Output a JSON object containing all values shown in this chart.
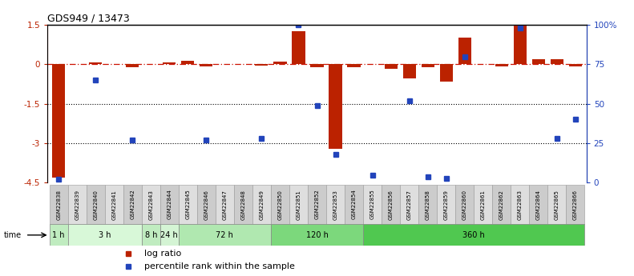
{
  "title": "GDS949 / 13473",
  "samples": [
    "GSM22838",
    "GSM22839",
    "GSM22840",
    "GSM22841",
    "GSM22842",
    "GSM22843",
    "GSM22844",
    "GSM22845",
    "GSM22846",
    "GSM22847",
    "GSM22848",
    "GSM22849",
    "GSM22850",
    "GSM22851",
    "GSM22852",
    "GSM22853",
    "GSM22854",
    "GSM22855",
    "GSM22856",
    "GSM22857",
    "GSM22858",
    "GSM22859",
    "GSM22860",
    "GSM22861",
    "GSM22862",
    "GSM22863",
    "GSM22864",
    "GSM22865",
    "GSM22866"
  ],
  "log_ratio": [
    -4.3,
    0.0,
    0.07,
    0.0,
    -0.12,
    0.0,
    0.07,
    0.12,
    -0.07,
    0.0,
    0.0,
    -0.05,
    0.1,
    1.25,
    -0.12,
    -3.2,
    -0.12,
    0.0,
    -0.18,
    -0.55,
    -0.12,
    -0.65,
    1.0,
    0.0,
    -0.07,
    1.5,
    0.18,
    0.2,
    -0.07
  ],
  "percentile": [
    2,
    0,
    65,
    0,
    27,
    0,
    0,
    0,
    27,
    0,
    0,
    28,
    0,
    100,
    49,
    18,
    0,
    5,
    0,
    52,
    4,
    3,
    80,
    0,
    0,
    98,
    0,
    28,
    40
  ],
  "time_groups": [
    {
      "label": "1 h",
      "start": 0,
      "end": 1,
      "color": "#c0ecc0"
    },
    {
      "label": "3 h",
      "start": 1,
      "end": 5,
      "color": "#d8f8d8"
    },
    {
      "label": "8 h",
      "start": 5,
      "end": 6,
      "color": "#c0ecc0"
    },
    {
      "label": "24 h",
      "start": 6,
      "end": 7,
      "color": "#d4f4d4"
    },
    {
      "label": "72 h",
      "start": 7,
      "end": 12,
      "color": "#b0e8b0"
    },
    {
      "label": "120 h",
      "start": 12,
      "end": 17,
      "color": "#7cd87c"
    },
    {
      "label": "360 h",
      "start": 17,
      "end": 29,
      "color": "#50c850"
    }
  ],
  "ylim_left": [
    -4.5,
    1.5
  ],
  "ylim_right": [
    0,
    100
  ],
  "bar_color": "#bb2200",
  "dot_color": "#2244bb",
  "dashed_line_color": "#cc1100",
  "grid_color": "#000000",
  "bg_color": "#ffffff"
}
